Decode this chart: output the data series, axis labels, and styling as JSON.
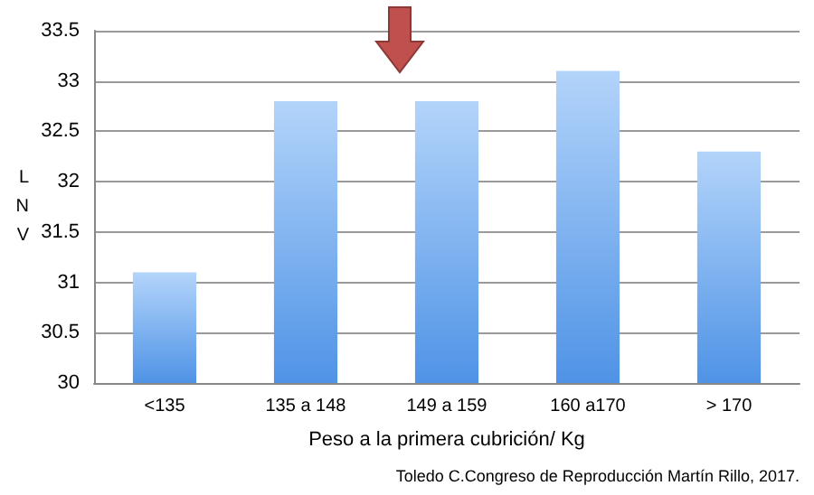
{
  "chart_data": {
    "type": "bar",
    "ylabel": "LNV",
    "xlabel": "Peso a la primera cubrición/ Kg",
    "categories": [
      "<135",
      "135 a 148",
      "149 a 159",
      "160 a170",
      "> 170"
    ],
    "values": [
      31.1,
      32.8,
      32.8,
      33.1,
      32.3
    ],
    "color": "#4f93e6",
    "ylim": [
      30,
      33.5
    ],
    "yticks": [
      30,
      30.5,
      31,
      31.5,
      32,
      32.5,
      33,
      33.5
    ],
    "grid": "y",
    "annotations": [
      "Toledo C.Congreso de Reproducción Martín Rillo, 2017."
    ]
  }
}
